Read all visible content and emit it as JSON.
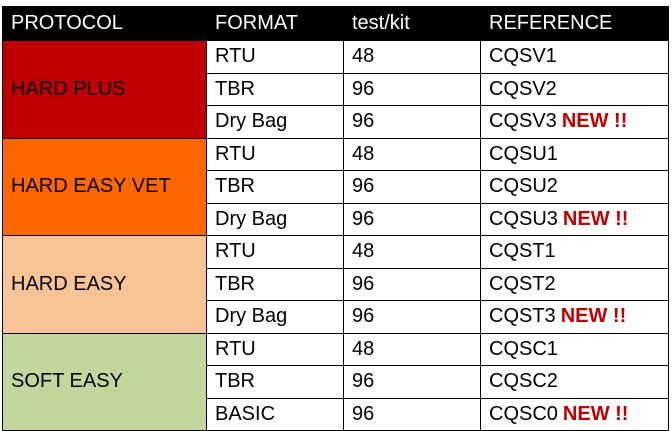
{
  "headers": [
    "PROTOCOL",
    "FORMAT",
    "test/kit",
    "REFERENCE"
  ],
  "groups": [
    {
      "protocol": "HARD PLUS",
      "color": "#c00000",
      "rows": [
        {
          "format": "RTU",
          "tests": "48",
          "reference": "CQSV1",
          "badge": ""
        },
        {
          "format": "TBR",
          "tests": "96",
          "reference": "CQSV2",
          "badge": ""
        },
        {
          "format": "Dry Bag",
          "tests": "96",
          "reference": "CQSV3",
          "badge": "NEW !!"
        }
      ]
    },
    {
      "protocol": "HARD EASY VET",
      "color": "#ff6600",
      "rows": [
        {
          "format": "RTU",
          "tests": "48",
          "reference": "CQSU1",
          "badge": ""
        },
        {
          "format": "TBR",
          "tests": "96",
          "reference": "CQSU2",
          "badge": ""
        },
        {
          "format": "Dry Bag",
          "tests": "96",
          "reference": "CQSU3",
          "badge": "NEW !!"
        }
      ]
    },
    {
      "protocol": "HARD EASY",
      "color": "#f8c496",
      "rows": [
        {
          "format": "RTU",
          "tests": "48",
          "reference": "CQST1",
          "badge": ""
        },
        {
          "format": "TBR",
          "tests": "96",
          "reference": "CQST2",
          "badge": ""
        },
        {
          "format": "Dry Bag",
          "tests": "96",
          "reference": "CQST3",
          "badge": "NEW !!"
        }
      ]
    },
    {
      "protocol": "SOFT EASY",
      "color": "#c3d69b",
      "rows": [
        {
          "format": "RTU",
          "tests": "48",
          "reference": "CQSC1",
          "badge": ""
        },
        {
          "format": "TBR",
          "tests": "96",
          "reference": "CQSC2",
          "badge": ""
        },
        {
          "format": "BASIC",
          "tests": "96",
          "reference": "CQSC0",
          "badge": "NEW !!"
        }
      ]
    }
  ],
  "colors": {
    "header_bg": "#000000",
    "header_text": "#ffffff",
    "badge": "#c00000"
  }
}
